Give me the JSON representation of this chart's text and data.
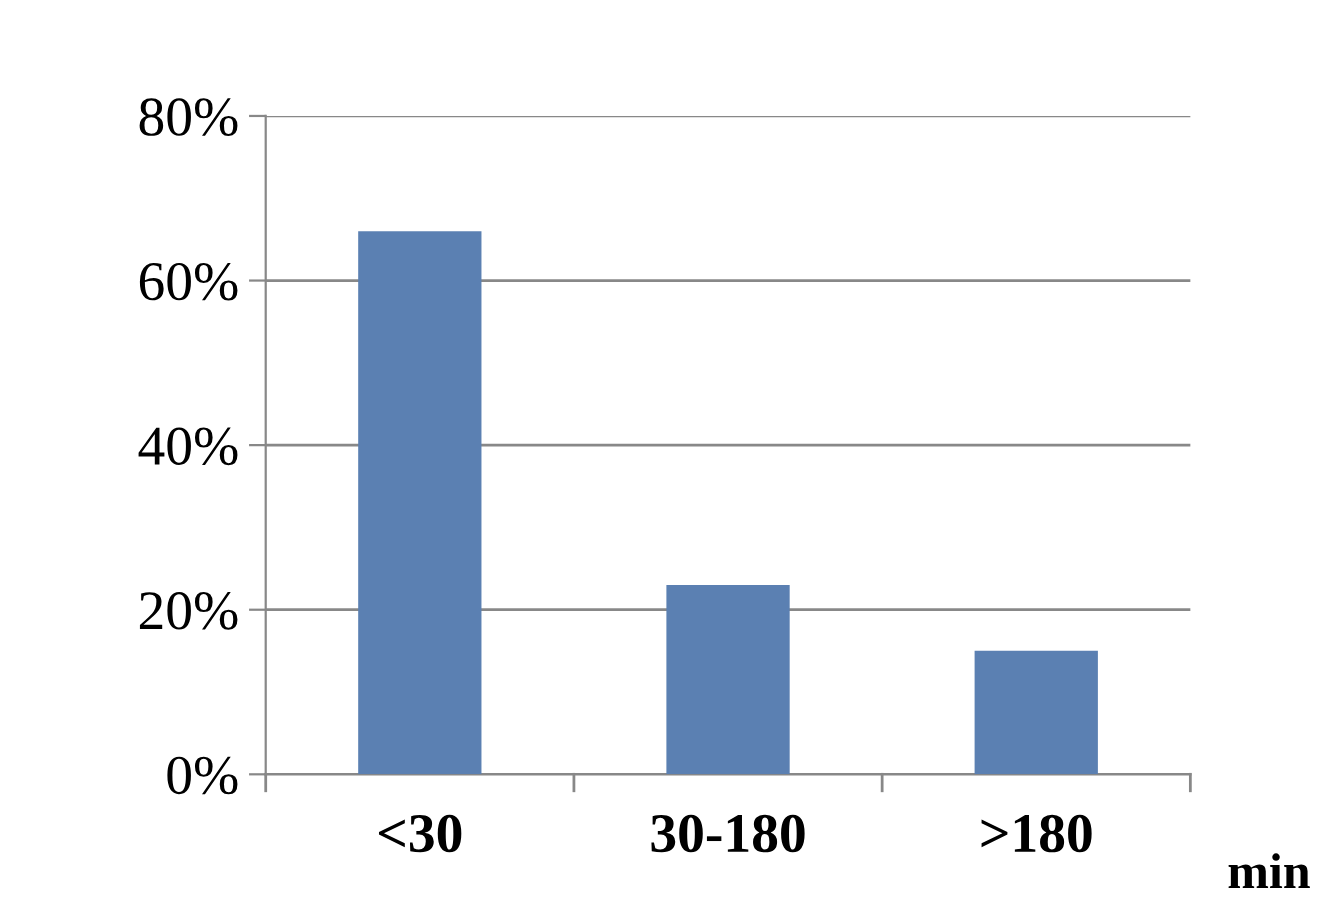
{
  "chart_data": {
    "type": "bar",
    "categories": [
      "<30",
      "30-180",
      ">180"
    ],
    "values": [
      66,
      23,
      15
    ],
    "color": "#5b80b2",
    "xlabel": "min",
    "ylim": [
      0,
      80
    ],
    "yticks": [
      {
        "value": 0,
        "label": "0%"
      },
      {
        "value": 20,
        "label": "20%"
      },
      {
        "value": 40,
        "label": "40%"
      },
      {
        "value": 60,
        "label": "60%"
      },
      {
        "value": 80,
        "label": "80%"
      }
    ],
    "grid": "y"
  }
}
